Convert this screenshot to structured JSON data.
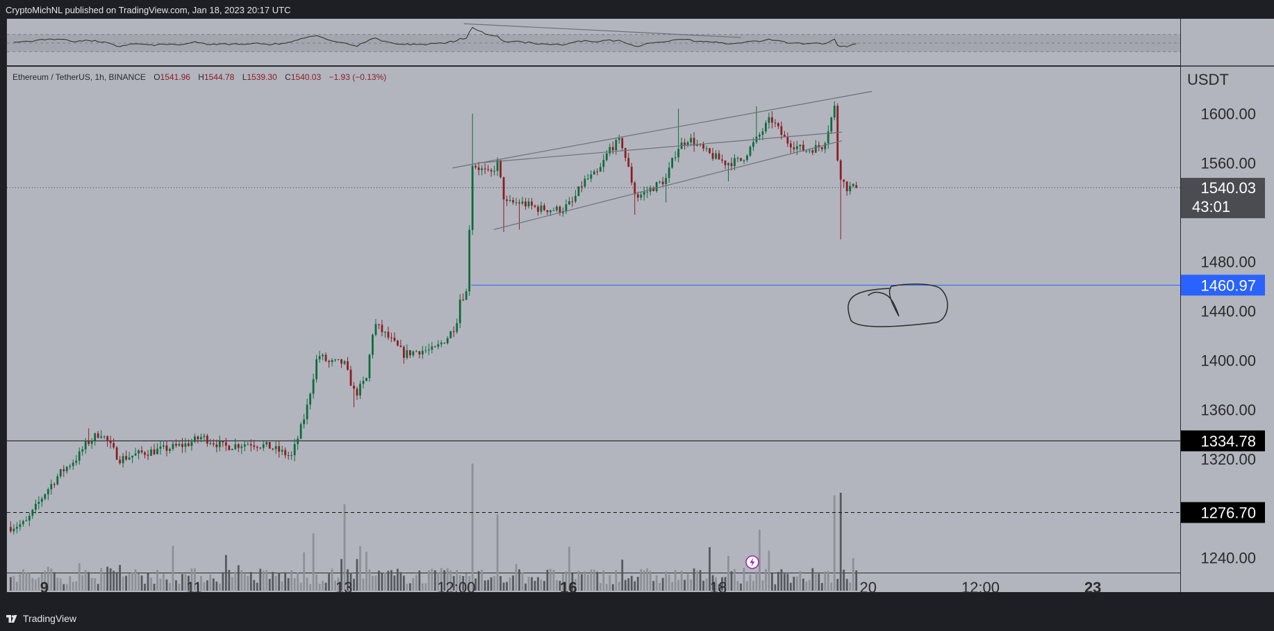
{
  "header": {
    "published_by": "CryptoMichNL published on TradingView.com, Jan 18, 2023 20:17 UTC"
  },
  "footer": {
    "brand": "TradingView"
  },
  "legend": {
    "symbol": "Ethereum / TetherUS, 1h, BINANCE",
    "o_label": "O",
    "o": "1541.96",
    "h_label": "H",
    "h": "1544.78",
    "l_label": "L",
    "l": "1539.30",
    "c_label": "C",
    "c": "1540.03",
    "change": "−1.93 (−0.13%)"
  },
  "price_axis": {
    "currency": "USDT",
    "ticks": [
      "1600.00",
      "1560.00",
      "1480.00",
      "1440.00",
      "1400.00",
      "1360.00",
      "1320.00",
      "1240.00"
    ],
    "last_price_label": "1540.03",
    "countdown": "43:01",
    "line_labels": [
      "1460.97",
      "1334.78",
      "1276.70"
    ]
  },
  "time_axis": {
    "labels": [
      "9",
      "11",
      "13",
      "12:00",
      "16",
      "18",
      "20",
      "12:00",
      "23"
    ],
    "bold": [
      "9",
      "16",
      "23"
    ]
  },
  "colors": {
    "pane_bg": "#b2b5be",
    "up": "#0d6b3a",
    "down": "#8c1d22",
    "blue_line": "#2962ff",
    "panel": "#1e1f24"
  },
  "chart_data": {
    "type": "candlestick",
    "symbol": "ETHUSDT",
    "interval": "1h",
    "ylim": [
      1228,
      1638
    ],
    "x_range_days": [
      "2023-01-08T12:00",
      "2023-01-24T04:00"
    ],
    "last": {
      "o": 1541.96,
      "h": 1544.78,
      "l": 1539.3,
      "c": 1540.03
    },
    "horizontal_lines": [
      {
        "price": 1540.03,
        "style": "dotted",
        "color": "#3a3a3a",
        "label": "last price"
      },
      {
        "price": 1460.97,
        "style": "solid",
        "color": "#2962ff"
      },
      {
        "price": 1334.78,
        "style": "solid",
        "color": "#111111"
      },
      {
        "price": 1276.7,
        "style": "dashed",
        "color": "#111111"
      }
    ],
    "price_path": [
      [
        8.55,
        1265
      ],
      [
        8.75,
        1268
      ],
      [
        9.0,
        1292
      ],
      [
        9.2,
        1308
      ],
      [
        9.45,
        1322
      ],
      [
        9.55,
        1332
      ],
      [
        9.75,
        1342
      ],
      [
        10.0,
        1320
      ],
      [
        10.3,
        1325
      ],
      [
        10.6,
        1328
      ],
      [
        10.9,
        1332
      ],
      [
        11.1,
        1338
      ],
      [
        11.4,
        1330
      ],
      [
        11.75,
        1333
      ],
      [
        12.0,
        1330
      ],
      [
        12.3,
        1322
      ],
      [
        12.4,
        1340
      ],
      [
        12.5,
        1360
      ],
      [
        12.65,
        1405
      ],
      [
        12.8,
        1398
      ],
      [
        13.0,
        1398
      ],
      [
        13.15,
        1372
      ],
      [
        13.3,
        1385
      ],
      [
        13.4,
        1430
      ],
      [
        13.6,
        1418
      ],
      [
        13.8,
        1405
      ],
      [
        14.0,
        1408
      ],
      [
        14.2,
        1408
      ],
      [
        14.4,
        1420
      ],
      [
        14.5,
        1430
      ],
      [
        14.55,
        1450
      ],
      [
        14.65,
        1456
      ],
      [
        14.7,
        1560
      ],
      [
        14.8,
        1556
      ],
      [
        14.95,
        1550
      ],
      [
        15.05,
        1560
      ],
      [
        15.15,
        1527
      ],
      [
        15.35,
        1528
      ],
      [
        15.6,
        1523
      ],
      [
        15.9,
        1522
      ],
      [
        16.05,
        1528
      ],
      [
        16.2,
        1545
      ],
      [
        16.4,
        1552
      ],
      [
        16.55,
        1572
      ],
      [
        16.7,
        1578
      ],
      [
        16.9,
        1532
      ],
      [
        17.05,
        1537
      ],
      [
        17.3,
        1547
      ],
      [
        17.45,
        1572
      ],
      [
        17.6,
        1580
      ],
      [
        17.85,
        1568
      ],
      [
        18.1,
        1560
      ],
      [
        18.3,
        1562
      ],
      [
        18.5,
        1578
      ],
      [
        18.7,
        1596
      ],
      [
        18.9,
        1578
      ],
      [
        19.15,
        1570
      ],
      [
        19.4,
        1574
      ],
      [
        19.55,
        1605
      ],
      [
        19.6,
        1555
      ],
      [
        19.7,
        1540
      ],
      [
        19.85,
        1540
      ]
    ],
    "volume_spikes": [
      [
        12.6,
        0.45
      ],
      [
        13.0,
        0.68
      ],
      [
        13.2,
        0.35
      ],
      [
        14.7,
        1.0
      ],
      [
        15.05,
        0.6
      ],
      [
        18.55,
        0.48
      ],
      [
        19.55,
        0.75
      ],
      [
        19.65,
        0.77
      ]
    ],
    "overlay_indicator": {
      "range": [
        0,
        100
      ],
      "upper": 70,
      "lower": 30
    },
    "drawings": {
      "channel_upper": [
        [
          14.45,
          1556
        ],
        [
          20.05,
          1618
        ]
      ],
      "channel_mid": [
        [
          14.8,
          1560
        ],
        [
          19.65,
          1585
        ]
      ],
      "channel_lower": [
        [
          15.0,
          1506
        ],
        [
          19.65,
          1578
        ]
      ],
      "rsi_trendline": [
        [
          14.6,
          95
        ],
        [
          18.3,
          63
        ]
      ]
    }
  }
}
